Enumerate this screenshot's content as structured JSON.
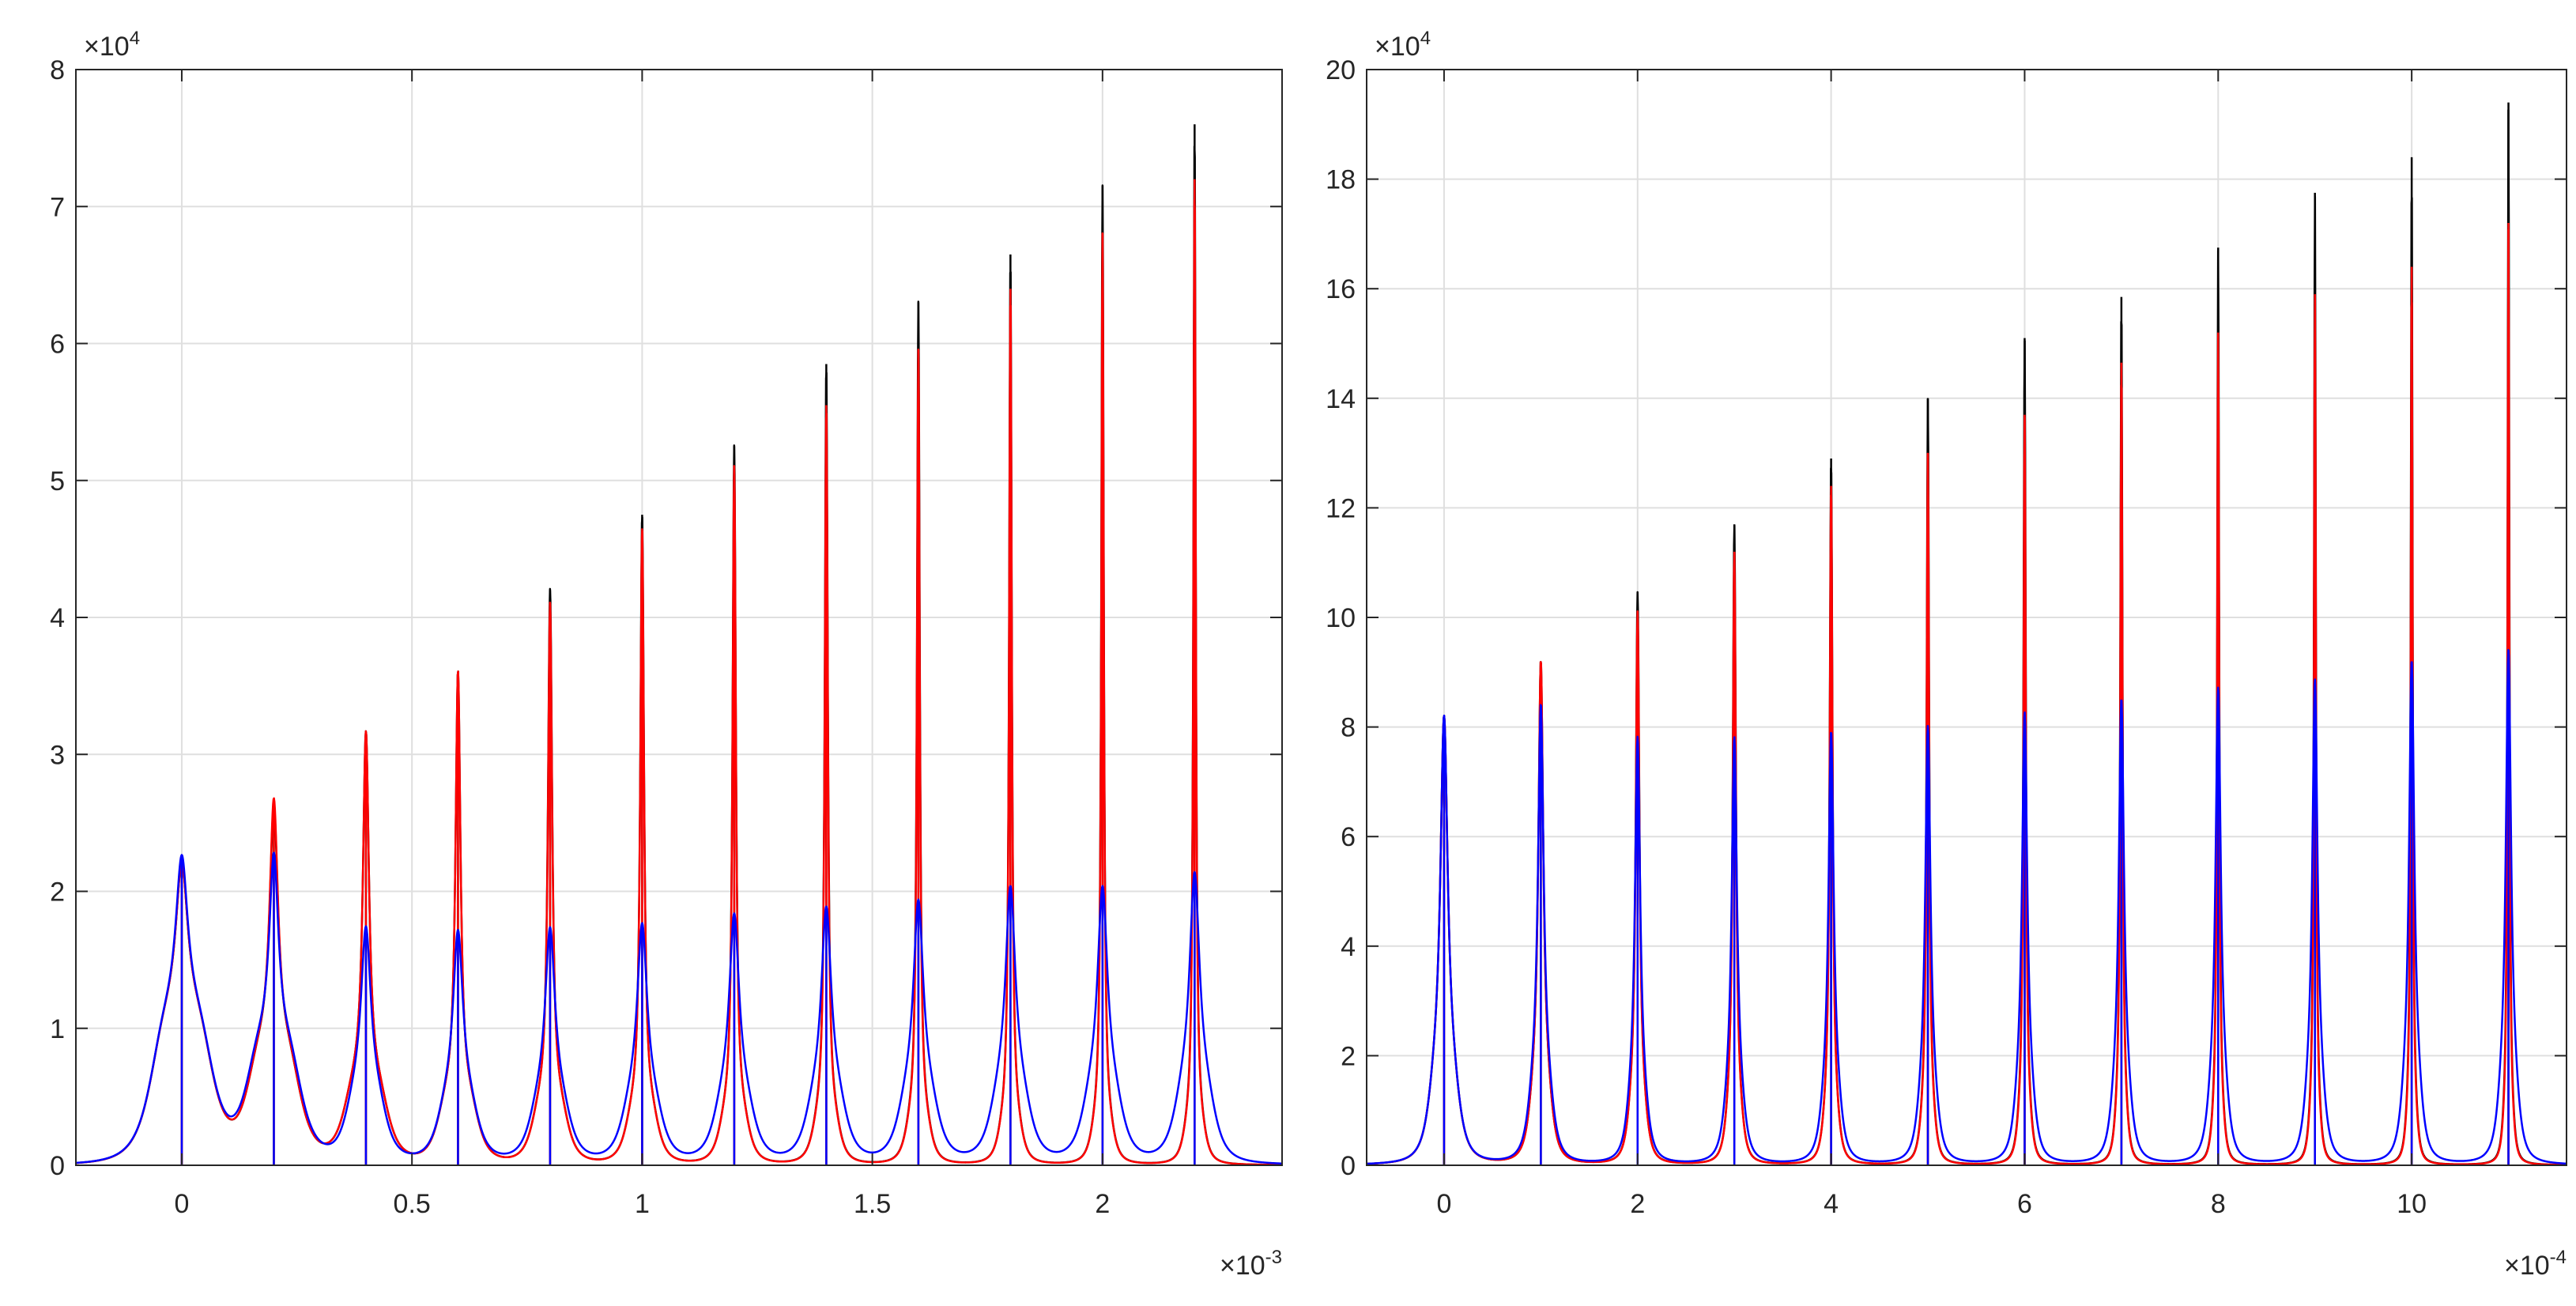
{
  "chart_data": [
    {
      "type": "line",
      "title": "",
      "xlabel": "",
      "ylabel": "",
      "grid": true,
      "xlim": [
        -0.00023,
        0.00239
      ],
      "ylim": [
        0,
        80000
      ],
      "x_ticks": [
        0,
        0.0005,
        0.001,
        0.0015,
        0.002
      ],
      "x_tick_labels": [
        "0",
        "0.5",
        "1",
        "1.5",
        "2"
      ],
      "x_exponent": {
        "base": "×10",
        "power": "-3"
      },
      "y_ticks": [
        0,
        10000,
        20000,
        30000,
        40000,
        50000,
        60000,
        70000,
        80000
      ],
      "y_tick_labels": [
        "0",
        "1",
        "2",
        "3",
        "4",
        "5",
        "6",
        "7",
        "8"
      ],
      "y_exponent": {
        "base": "×10",
        "power": "4"
      },
      "peak_centers": [
        0,
        0.0002,
        0.0004,
        0.0006,
        0.0008,
        0.001,
        0.0012,
        0.0014,
        0.0016,
        0.0018,
        0.002,
        0.0022
      ],
      "series": [
        {
          "name": "black",
          "color": "#000000",
          "peaks": [
            22000,
            26000,
            31500,
            36000,
            42000,
            47500,
            52500,
            58500,
            63000,
            66500,
            71500,
            76000
          ],
          "widths": [
            1.6e-05,
            1.1e-05,
            8e-06,
            6.5e-06,
            5.5e-06,
            4.8e-06,
            4.3e-06,
            3.9e-06,
            3.6e-06,
            3.4e-06,
            3.2e-06,
            3e-06
          ],
          "base_widths": [
            7e-05,
            6e-05,
            5e-05,
            4.5e-05,
            4e-05,
            3.6e-05,
            3.3e-05,
            3e-05,
            2.8e-05,
            2.6e-05,
            2.5e-05,
            2.4e-05
          ],
          "base_amps": [
            10500,
            8000,
            5500,
            4800,
            4300,
            3900,
            3600,
            3300,
            3100,
            2900,
            2800,
            2700
          ]
        },
        {
          "name": "red",
          "color": "#ff0000",
          "peaks": [
            22000,
            26500,
            31500,
            36000,
            41000,
            46500,
            51000,
            55500,
            59500,
            64000,
            68000,
            72000
          ],
          "widths": [
            1.6e-05,
            1.1e-05,
            8e-06,
            6.5e-06,
            5.5e-06,
            4.8e-06,
            4.3e-06,
            3.9e-06,
            3.6e-06,
            3.4e-06,
            3.2e-06,
            3e-06
          ],
          "base_widths": [
            7e-05,
            6e-05,
            5e-05,
            4.5e-05,
            4e-05,
            3.6e-05,
            3.3e-05,
            3e-05,
            2.8e-05,
            2.6e-05,
            2.5e-05,
            2.4e-05
          ],
          "base_amps": [
            10500,
            8000,
            5500,
            4800,
            4300,
            3900,
            3600,
            3300,
            3100,
            2900,
            2800,
            2700
          ]
        },
        {
          "name": "blue",
          "color": "#0000ff",
          "peaks": [
            22500,
            22500,
            17200,
            17000,
            17200,
            17500,
            18200,
            18700,
            19200,
            20200,
            20200,
            21300
          ],
          "widths": [
            1.6e-05,
            1.2e-05,
            1.3e-05,
            1.3e-05,
            1.3e-05,
            1.3e-05,
            1.3e-05,
            1.3e-05,
            1.3e-05,
            1.3e-05,
            1.3e-05,
            1.3e-05
          ],
          "base_widths": [
            7e-05,
            6.2e-05,
            4.5e-05,
            4.5e-05,
            4.5e-05,
            4.5e-05,
            4.5e-05,
            4.5e-05,
            4.5e-05,
            4.5e-05,
            4.5e-05,
            4.5e-05
          ],
          "base_amps": [
            10500,
            8500,
            4500,
            4200,
            4200,
            4300,
            4400,
            4500,
            4600,
            4800,
            4800,
            5000
          ]
        }
      ]
    },
    {
      "type": "line",
      "title": "",
      "xlabel": "",
      "ylabel": "",
      "grid": true,
      "xlim": [
        -8e-05,
        0.00116
      ],
      "ylim": [
        0,
        200000
      ],
      "x_ticks": [
        0,
        0.0002,
        0.0004,
        0.0006,
        0.0008,
        0.001
      ],
      "x_tick_labels": [
        "0",
        "2",
        "4",
        "6",
        "8",
        "10"
      ],
      "x_exponent": {
        "base": "×10",
        "power": "-4"
      },
      "y_ticks": [
        0,
        20000,
        40000,
        60000,
        80000,
        100000,
        120000,
        140000,
        160000,
        180000,
        200000
      ],
      "y_tick_labels": [
        "0",
        "2",
        "4",
        "6",
        "8",
        "10",
        "12",
        "14",
        "16",
        "18",
        "20"
      ],
      "y_exponent": {
        "base": "×10",
        "power": "4"
      },
      "peak_centers": [
        0,
        0.0001,
        0.0002,
        0.0003,
        0.0004,
        0.0005,
        0.0006,
        0.0007,
        0.0008,
        0.0009,
        0.001,
        0.0011
      ],
      "series": [
        {
          "name": "black",
          "color": "#000000",
          "peaks": [
            82000,
            92000,
            104500,
            117000,
            129000,
            140000,
            151000,
            158500,
            167500,
            177500,
            184000,
            194000
          ],
          "widths": [
            4.5e-06,
            3e-06,
            2.2e-06,
            1.9e-06,
            1.7e-06,
            1.5e-06,
            1.4e-06,
            1.3e-06,
            1.2e-06,
            1.15e-06,
            1.1e-06,
            1.05e-06
          ],
          "base_widths": [
            1.6e-05,
            1.2e-05,
            1e-05,
            9e-06,
            8.5e-06,
            8e-06,
            7.5e-06,
            7e-06,
            6.8e-06,
            6.5e-06,
            6.3e-06,
            6e-06
          ],
          "base_amps": [
            14000,
            12000,
            10000,
            9000,
            8500,
            8000,
            7600,
            7300,
            7000,
            6800,
            6600,
            6400
          ]
        },
        {
          "name": "red",
          "color": "#ff0000",
          "peaks": [
            82000,
            92000,
            101000,
            112000,
            124000,
            130000,
            137000,
            146500,
            152000,
            159000,
            164000,
            172000
          ],
          "widths": [
            4.5e-06,
            3e-06,
            2.2e-06,
            1.9e-06,
            1.7e-06,
            1.5e-06,
            1.4e-06,
            1.3e-06,
            1.2e-06,
            1.15e-06,
            1.1e-06,
            1.05e-06
          ],
          "base_widths": [
            1.6e-05,
            1.2e-05,
            1e-05,
            9e-06,
            8.5e-06,
            8e-06,
            7.5e-06,
            7e-06,
            6.8e-06,
            6.5e-06,
            6.3e-06,
            6e-06
          ],
          "base_amps": [
            14000,
            12000,
            10000,
            9000,
            8500,
            8000,
            7600,
            7300,
            7000,
            6800,
            6600,
            6400
          ]
        },
        {
          "name": "blue",
          "color": "#0000ff",
          "peaks": [
            82000,
            84000,
            78000,
            78000,
            79000,
            80000,
            82500,
            85000,
            87000,
            88500,
            92000,
            94000
          ],
          "widths": [
            4.5e-06,
            3.5e-06,
            3.2e-06,
            3.2e-06,
            3.2e-06,
            3.2e-06,
            3.2e-06,
            3.2e-06,
            3.2e-06,
            3.2e-06,
            3.2e-06,
            3.2e-06
          ],
          "base_widths": [
            1.6e-05,
            1.3e-05,
            1.1e-05,
            1.1e-05,
            1.1e-05,
            1.1e-05,
            1.1e-05,
            1.1e-05,
            1.1e-05,
            1.1e-05,
            1.1e-05,
            1.1e-05
          ],
          "base_amps": [
            14000,
            12000,
            10000,
            10000,
            10000,
            10000,
            10500,
            10500,
            11000,
            11000,
            11500,
            11500
          ]
        }
      ]
    }
  ]
}
